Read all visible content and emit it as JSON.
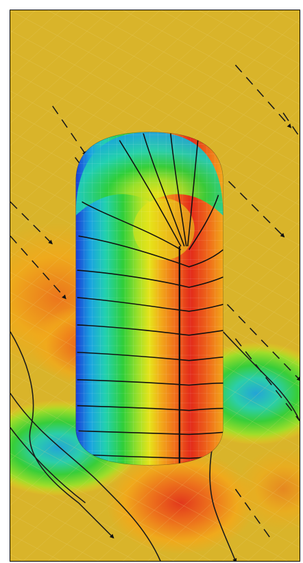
{
  "figure": {
    "description_colors": {
      "background": "#d9b42a",
      "border": "#000000"
    }
  },
  "colormap": [
    "#1a3fd6",
    "#1aa3e0",
    "#22d0b0",
    "#2fcf3a",
    "#9be02a",
    "#e6e31a",
    "#f2a81a",
    "#ef6a1a",
    "#e32a1a"
  ]
}
